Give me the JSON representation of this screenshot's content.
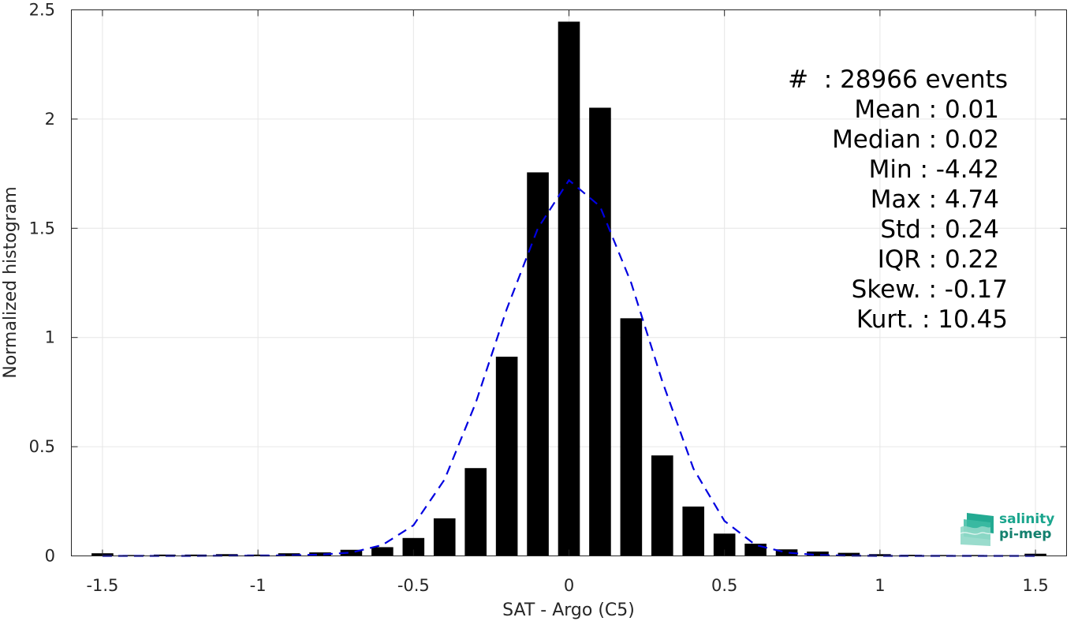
{
  "chart_data": {
    "type": "bar",
    "xlabel": "SAT - Argo (C5)",
    "ylabel": "Normalized histogram",
    "xlim": [
      -1.6,
      1.6
    ],
    "ylim": [
      0,
      2.5
    ],
    "x_ticks": [
      -1.5,
      -1,
      -0.5,
      0,
      0.5,
      1,
      1.5
    ],
    "x_tick_labels": [
      "-1.5",
      "-1",
      "-0.5",
      "0",
      "0.5",
      "1",
      "1.5"
    ],
    "y_ticks": [
      0,
      0.5,
      1,
      1.5,
      2,
      2.5
    ],
    "y_tick_labels": [
      "0",
      "0.5",
      "1",
      "1.5",
      "2",
      "2.5"
    ],
    "grid": true,
    "bar_color": "#000000",
    "curve_color": "#0000e0",
    "bars": {
      "x": [
        -1.5,
        -1.4,
        -1.3,
        -1.2,
        -1.1,
        -1.0,
        -0.9,
        -0.8,
        -0.7,
        -0.6,
        -0.5,
        -0.4,
        -0.3,
        -0.2,
        -0.1,
        0.0,
        0.1,
        0.2,
        0.3,
        0.4,
        0.5,
        0.6,
        0.7,
        0.8,
        0.9,
        1.0,
        1.1,
        1.2,
        1.3,
        1.4,
        1.5
      ],
      "values": [
        0.012,
        0.004,
        0.006,
        0.006,
        0.008,
        0.006,
        0.012,
        0.016,
        0.028,
        0.04,
        0.082,
        0.172,
        0.402,
        0.912,
        1.756,
        2.446,
        2.052,
        1.088,
        0.46,
        0.226,
        0.102,
        0.056,
        0.03,
        0.02,
        0.014,
        0.008,
        0.005,
        0.004,
        0.004,
        0.003,
        0.01
      ]
    },
    "fit_curve": {
      "x": [
        -1.5,
        -1.4,
        -1.3,
        -1.2,
        -1.1,
        -1.0,
        -0.9,
        -0.8,
        -0.7,
        -0.6,
        -0.5,
        -0.4,
        -0.3,
        -0.2,
        -0.1,
        0.0,
        0.1,
        0.2,
        0.3,
        0.4,
        0.5,
        0.6,
        0.7,
        0.8,
        0.9,
        1.0,
        1.1,
        1.2,
        1.3,
        1.4,
        1.5
      ],
      "y": [
        0.0,
        0.0,
        0.0,
        0.0,
        0.001,
        0.001,
        0.002,
        0.006,
        0.015,
        0.05,
        0.14,
        0.35,
        0.7,
        1.13,
        1.5,
        1.72,
        1.6,
        1.25,
        0.8,
        0.4,
        0.16,
        0.05,
        0.015,
        0.004,
        0.001,
        0.0,
        0.0,
        0.0,
        0.0,
        0.0,
        0.0
      ]
    }
  },
  "stats": {
    "count": "#  : 28966 events",
    "mean": "Mean : 0.01",
    "median": "Median : 0.02",
    "min": "Min : -4.42",
    "max": "Max : 4.74",
    "std": "Std : 0.24",
    "iqr": "IQR : 0.22",
    "skew": "Skew. : -0.17",
    "kurt": "Kurt. : 10.45"
  },
  "logo": {
    "line1": "salinity",
    "line2": "pi-mep",
    "colors": [
      "#1aa58d",
      "#13806e"
    ]
  }
}
